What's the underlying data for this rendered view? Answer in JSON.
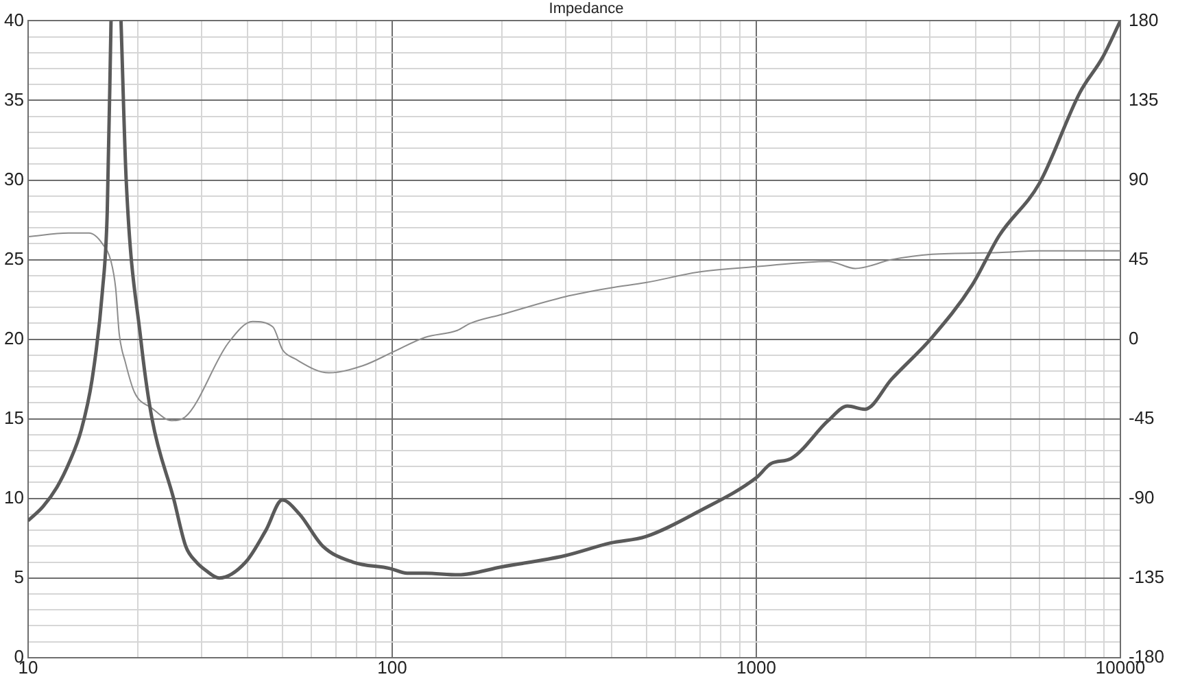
{
  "chart_data": {
    "type": "line",
    "title": "Impedance",
    "log": "x",
    "grid": true,
    "legend": false,
    "marker": "none",
    "line_style": "solid",
    "xlim": [
      10,
      10000
    ],
    "ylim": [
      0,
      40
    ],
    "y2lim": [
      -180,
      180
    ],
    "xticks": [
      10,
      {
        "value": 20,
        "label": null
      },
      {
        "value": 30,
        "label": null
      },
      {
        "value": 40,
        "label": null
      },
      {
        "value": 50,
        "label": null
      },
      {
        "value": 60,
        "label": null
      },
      {
        "value": 70,
        "label": null
      },
      {
        "value": 80,
        "label": null
      },
      {
        "value": 90,
        "label": null
      },
      100,
      {
        "value": 200,
        "label": null
      },
      {
        "value": 300,
        "label": null
      },
      {
        "value": 400,
        "label": null
      },
      {
        "value": 500,
        "label": null
      },
      {
        "value": 600,
        "label": null
      },
      {
        "value": 700,
        "label": null
      },
      {
        "value": 800,
        "label": null
      },
      {
        "value": 900,
        "label": null
      },
      1000,
      {
        "value": 2000,
        "label": null
      },
      {
        "value": 3000,
        "label": null
      },
      {
        "value": 4000,
        "label": null
      },
      {
        "value": 5000,
        "label": null
      },
      {
        "value": 6000,
        "label": null
      },
      {
        "value": 7000,
        "label": null
      },
      {
        "value": 8000,
        "label": null
      },
      {
        "value": 9000,
        "label": null
      },
      10000
    ],
    "yticks": [
      0,
      {
        "value": 1,
        "label": null
      },
      {
        "value": 2,
        "label": null
      },
      {
        "value": 3,
        "label": null
      },
      {
        "value": 4,
        "label": null
      },
      5,
      {
        "value": 6,
        "label": null
      },
      {
        "value": 7,
        "label": null
      },
      {
        "value": 8,
        "label": null
      },
      {
        "value": 9,
        "label": null
      },
      10,
      {
        "value": 11,
        "label": null
      },
      {
        "value": 12,
        "label": null
      },
      {
        "value": 13,
        "label": null
      },
      {
        "value": 14,
        "label": null
      },
      15,
      {
        "value": 16,
        "label": null
      },
      {
        "value": 17,
        "label": null
      },
      {
        "value": 18,
        "label": null
      },
      {
        "value": 19,
        "label": null
      },
      20,
      {
        "value": 21,
        "label": null
      },
      {
        "value": 22,
        "label": null
      },
      {
        "value": 23,
        "label": null
      },
      {
        "value": 24,
        "label": null
      },
      25,
      {
        "value": 26,
        "label": null
      },
      {
        "value": 27,
        "label": null
      },
      {
        "value": 28,
        "label": null
      },
      {
        "value": 29,
        "label": null
      },
      30,
      {
        "value": 31,
        "label": null
      },
      {
        "value": 32,
        "label": null
      },
      {
        "value": 33,
        "label": null
      },
      {
        "value": 34,
        "label": null
      },
      35,
      {
        "value": 36,
        "label": null
      },
      {
        "value": 37,
        "label": null
      },
      {
        "value": 38,
        "label": null
      },
      {
        "value": 39,
        "label": null
      },
      40
    ],
    "y2ticks": [
      -180,
      -135,
      -90,
      -45,
      0,
      45,
      90,
      135,
      180
    ],
    "series": [
      {
        "color": "#5a5a5a",
        "x": [
          10,
          11,
          12,
          13,
          14,
          15,
          16,
          16.5,
          16.9,
          17.4,
          18.0,
          18.6,
          20.4,
          21.9,
          25.1,
          27.1,
          29,
          30.7,
          33.5,
          39.6,
          45,
          49.9,
          55.7,
          64.5,
          78,
          98.6,
          110,
          123,
          152,
          200,
          298,
          398,
          497,
          697,
          1000,
          1100,
          1245,
          1578,
          1780,
          1986,
          2355,
          3035,
          3917,
          4645,
          5994,
          7743,
          8935,
          10000
        ],
        "values": [
          8.6,
          9.5,
          10.7,
          12.3,
          14.3,
          17.5,
          23,
          28,
          40,
          null,
          40,
          30,
          20,
          15,
          10,
          7,
          6,
          5.5,
          5.0,
          6,
          8,
          9.9,
          9,
          7,
          6,
          5.6,
          5.3,
          5.3,
          5.2,
          5.7,
          6.4,
          7.2,
          7.6,
          9.2,
          11.3,
          12.2,
          12.5,
          14.9,
          15.8,
          15.6,
          17.5,
          20.1,
          23.4,
          26.5,
          29.8,
          35.5,
          37.7,
          40
        ]
      },
      {
        "color": "#8c8c8c",
        "axis": "y2",
        "x": [
          10,
          12.9,
          14.7,
          16,
          16.9,
          17.4,
          17.8,
          18.5,
          19.6,
          21.9,
          24.8,
          27,
          35.5,
          41.4,
          47,
          50,
          54,
          67,
          83,
          101,
          123,
          151,
          164,
          200,
          298,
          398,
          497,
          697,
          1000,
          1578,
          1870,
          2355,
          3035,
          4645,
          5994,
          9800,
          10000
        ],
        "values": [
          58,
          60,
          60,
          54,
          44,
          29,
          3,
          -13,
          -30,
          -39,
          -46,
          -44,
          -2,
          10,
          7,
          -6,
          -11,
          -19,
          -15,
          -7,
          1,
          5,
          9,
          14,
          24,
          29,
          32,
          38,
          41,
          44,
          40,
          45,
          48,
          49,
          50,
          50,
          50
        ]
      }
    ]
  }
}
